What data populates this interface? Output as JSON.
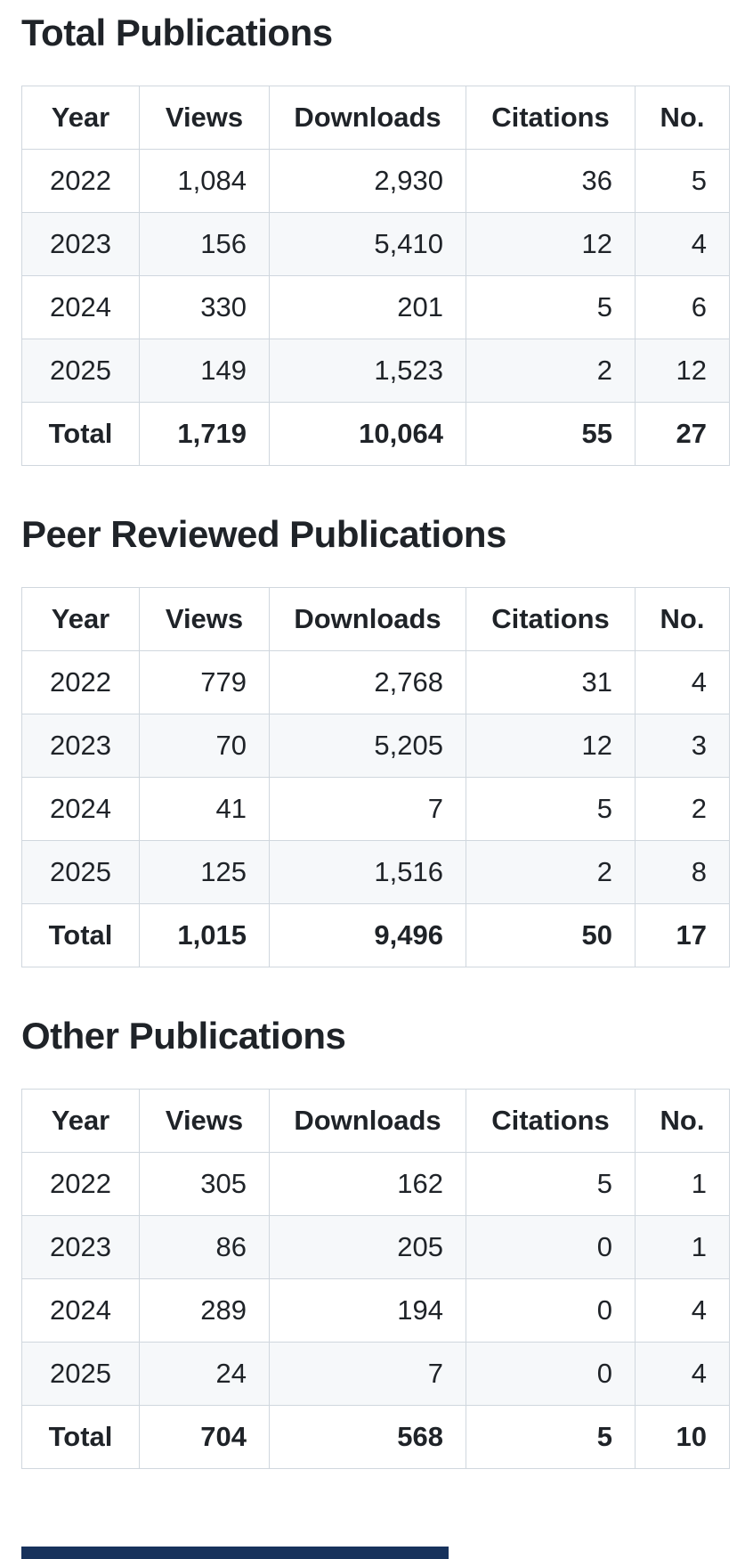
{
  "colors": {
    "text": "#1f2328",
    "border": "#d0d7de",
    "zebra_row": "#f6f8fa",
    "background": "#ffffff",
    "footer_bar": "#17325c"
  },
  "tables": [
    {
      "title": "Total Publications",
      "columns": [
        "Year",
        "Views",
        "Downloads",
        "Citations",
        "No."
      ],
      "rows": [
        [
          "2022",
          "1,084",
          "2,930",
          "36",
          "5"
        ],
        [
          "2023",
          "156",
          "5,410",
          "12",
          "4"
        ],
        [
          "2024",
          "330",
          "201",
          "5",
          "6"
        ],
        [
          "2025",
          "149",
          "1,523",
          "2",
          "12"
        ]
      ],
      "total_row": [
        "Total",
        "1,719",
        "10,064",
        "55",
        "27"
      ]
    },
    {
      "title": "Peer Reviewed Publications",
      "columns": [
        "Year",
        "Views",
        "Downloads",
        "Citations",
        "No."
      ],
      "rows": [
        [
          "2022",
          "779",
          "2,768",
          "31",
          "4"
        ],
        [
          "2023",
          "70",
          "5,205",
          "12",
          "3"
        ],
        [
          "2024",
          "41",
          "7",
          "5",
          "2"
        ],
        [
          "2025",
          "125",
          "1,516",
          "2",
          "8"
        ]
      ],
      "total_row": [
        "Total",
        "1,015",
        "9,496",
        "50",
        "17"
      ]
    },
    {
      "title": "Other Publications",
      "columns": [
        "Year",
        "Views",
        "Downloads",
        "Citations",
        "No."
      ],
      "rows": [
        [
          "2022",
          "305",
          "162",
          "5",
          "1"
        ],
        [
          "2023",
          "86",
          "205",
          "0",
          "1"
        ],
        [
          "2024",
          "289",
          "194",
          "0",
          "4"
        ],
        [
          "2025",
          "24",
          "7",
          "0",
          "4"
        ]
      ],
      "total_row": [
        "Total",
        "704",
        "568",
        "5",
        "10"
      ]
    }
  ]
}
